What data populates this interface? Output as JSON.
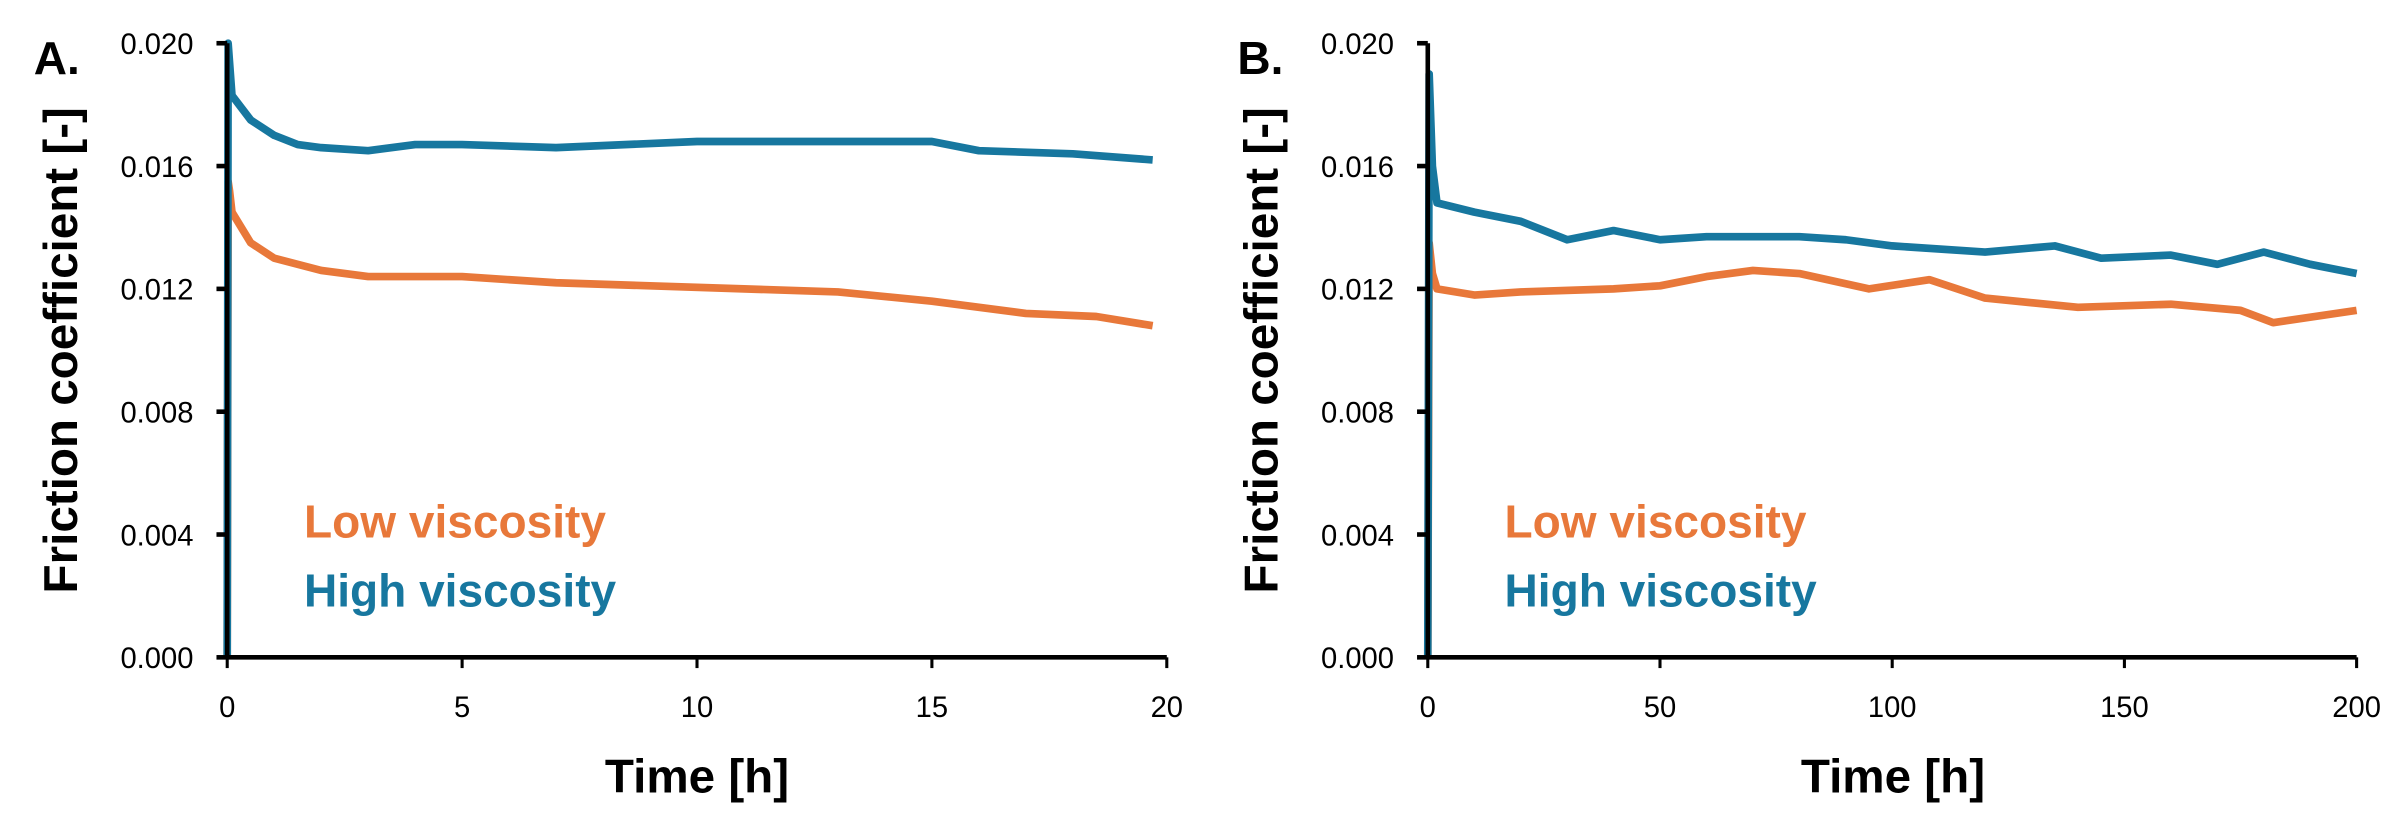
{
  "colors": {
    "low": "#e8783a",
    "high": "#17779f"
  },
  "chart_data": [
    {
      "type": "line",
      "panel_label": "A.",
      "xlabel": "Time [h]",
      "ylabel": "Friction coefficient [-]",
      "xlim": [
        0,
        20
      ],
      "ylim": [
        0,
        0.02
      ],
      "xticks": [
        "0",
        "5",
        "10",
        "15",
        "20"
      ],
      "yticks": [
        "0.000",
        "0.004",
        "0.008",
        "0.012",
        "0.016",
        "0.020"
      ],
      "grid": false,
      "legend_position": "bottom-left",
      "series": [
        {
          "name": "Low viscosity",
          "color_key": "low",
          "x": [
            0,
            0.02,
            0.05,
            0.1,
            0.5,
            1,
            2,
            3,
            5,
            7,
            9,
            11,
            13,
            15,
            17,
            18.5,
            19.7
          ],
          "y": [
            0,
            0.0155,
            0.0152,
            0.0145,
            0.0135,
            0.013,
            0.0126,
            0.0124,
            0.0124,
            0.0122,
            0.0121,
            0.012,
            0.0119,
            0.0116,
            0.0112,
            0.0111,
            0.0108
          ]
        },
        {
          "name": "High viscosity",
          "color_key": "high",
          "x": [
            0,
            0.02,
            0.1,
            0.5,
            1,
            1.5,
            2,
            3,
            4,
            5,
            7,
            10,
            12,
            14,
            15,
            16,
            18,
            19.7
          ],
          "y": [
            0,
            0.02,
            0.0183,
            0.0175,
            0.017,
            0.0167,
            0.0166,
            0.0165,
            0.0167,
            0.0167,
            0.0166,
            0.0168,
            0.0168,
            0.0168,
            0.0168,
            0.0165,
            0.0164,
            0.0162
          ]
        }
      ]
    },
    {
      "type": "line",
      "panel_label": "B.",
      "xlabel": "Time [h]",
      "ylabel": "Friction coefficient [-]",
      "xlim": [
        0,
        200
      ],
      "ylim": [
        0,
        0.02
      ],
      "xticks": [
        "0",
        "50",
        "100",
        "150",
        "200"
      ],
      "yticks": [
        "0.000",
        "0.004",
        "0.008",
        "0.012",
        "0.016",
        "0.020"
      ],
      "grid": false,
      "legend_position": "bottom-left",
      "series": [
        {
          "name": "Low viscosity",
          "color_key": "low",
          "x": [
            0,
            0.3,
            1,
            2,
            10,
            20,
            40,
            50,
            60,
            70,
            80,
            95,
            108,
            120,
            140,
            160,
            175,
            182,
            200
          ],
          "y": [
            0,
            0.0135,
            0.0125,
            0.012,
            0.0118,
            0.0119,
            0.012,
            0.0121,
            0.0124,
            0.0126,
            0.0125,
            0.012,
            0.0123,
            0.0117,
            0.0114,
            0.0115,
            0.0113,
            0.0109,
            0.0113
          ]
        },
        {
          "name": "High viscosity",
          "color_key": "high",
          "x": [
            0,
            0.3,
            1,
            2,
            10,
            20,
            30,
            40,
            50,
            60,
            80,
            90,
            100,
            120,
            135,
            145,
            160,
            170,
            180,
            190,
            200
          ],
          "y": [
            0,
            0.019,
            0.016,
            0.0148,
            0.0145,
            0.0142,
            0.0136,
            0.0139,
            0.0136,
            0.0137,
            0.0137,
            0.0136,
            0.0134,
            0.0132,
            0.0134,
            0.013,
            0.0131,
            0.0128,
            0.0132,
            0.0128,
            0.0125
          ]
        }
      ]
    }
  ]
}
